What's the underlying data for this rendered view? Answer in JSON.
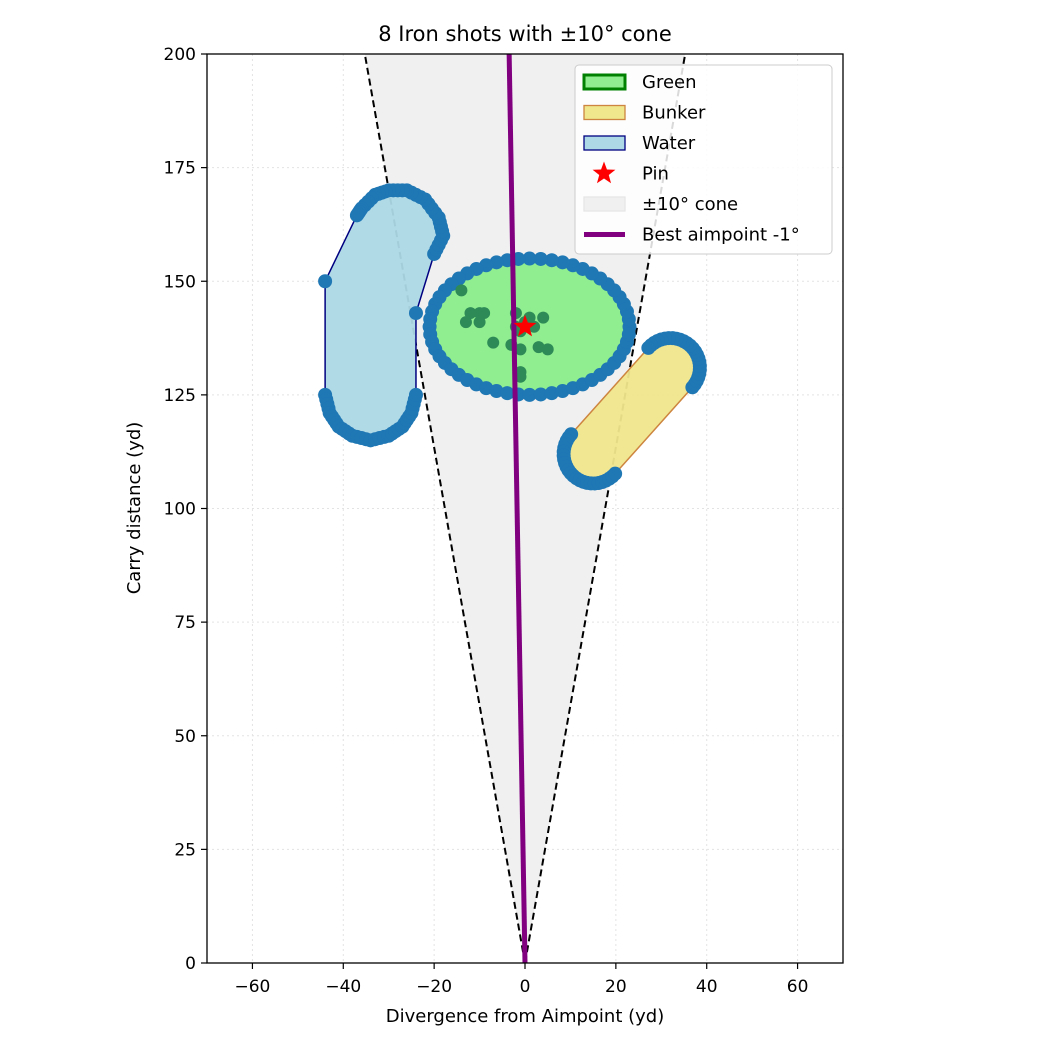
{
  "chart_data": {
    "type": "scatter",
    "title": "8 Iron shots with ±10° cone",
    "xlabel": "Divergence from Aimpoint (yd)",
    "ylabel": "Carry distance (yd)",
    "xlim": [
      -70,
      70
    ],
    "ylim": [
      0,
      200
    ],
    "xticks": [
      -60,
      -40,
      -20,
      0,
      20,
      40,
      60
    ],
    "yticks": [
      0,
      25,
      50,
      75,
      100,
      125,
      150,
      175,
      200
    ],
    "xtick_labels": [
      "−60",
      "−40",
      "−20",
      "0",
      "20",
      "40",
      "60"
    ],
    "ytick_labels": [
      "0",
      "25",
      "50",
      "75",
      "100",
      "125",
      "150",
      "175",
      "200"
    ],
    "grid": true,
    "legend_position": "top-right",
    "legend": [
      {
        "label": "Green",
        "kind": "patch",
        "fill": "#90ee90",
        "stroke": "#008000"
      },
      {
        "label": "Bunker",
        "kind": "patch",
        "fill": "#f0e68c",
        "stroke": "#cd853f"
      },
      {
        "label": "Water",
        "kind": "patch",
        "fill": "#add8e6",
        "stroke": "#000080"
      },
      {
        "label": "Pin",
        "kind": "star",
        "fill": "#ff0000"
      },
      {
        "label": "±10° cone",
        "kind": "patch",
        "fill": "#f0f0f0",
        "stroke": "#e6e6e6"
      },
      {
        "label": "Best aimpoint -1°",
        "kind": "line",
        "stroke": "#800080"
      }
    ],
    "cone": {
      "half_angle_deg": 10,
      "color": "#f0f0f0"
    },
    "best_aimpoint": {
      "angle_deg": -1,
      "color": "#800080"
    },
    "pin": {
      "x": 0,
      "y": 140,
      "color": "#ff0000"
    },
    "green": {
      "cx": 1,
      "cy": 140,
      "rx": 22,
      "ry": 15,
      "fill": "#90ee90",
      "stroke": "#008000"
    },
    "bunker": {
      "x1": 15,
      "y1": 112,
      "x2": 32,
      "y2": 131,
      "radius": 6.5,
      "fill": "#f0e68c",
      "stroke": "#cd853f"
    },
    "water": {
      "fill": "#add8e6",
      "stroke": "#000080",
      "polygon": [
        [
          -44,
          150
        ],
        [
          -44,
          125
        ],
        [
          -43,
          121
        ],
        [
          -41,
          118
        ],
        [
          -38,
          116
        ],
        [
          -34,
          115
        ],
        [
          -30,
          116
        ],
        [
          -27,
          118
        ],
        [
          -25,
          121
        ],
        [
          -24,
          125
        ],
        [
          -24,
          143
        ],
        [
          -20,
          156
        ],
        [
          -18,
          160
        ],
        [
          -19,
          164
        ],
        [
          -22,
          168
        ],
        [
          -26,
          170
        ],
        [
          -30,
          170
        ],
        [
          -33,
          169
        ],
        [
          -36,
          166
        ],
        [
          -37,
          164.5
        ]
      ]
    },
    "boundary_points_color": "#1f77b4",
    "shots_color": "#2e8b57",
    "shots": [
      {
        "x": -14,
        "y": 148
      },
      {
        "x": -12,
        "y": 143
      },
      {
        "x": -10,
        "y": 143
      },
      {
        "x": -9,
        "y": 143
      },
      {
        "x": -13,
        "y": 141
      },
      {
        "x": -10,
        "y": 141
      },
      {
        "x": -2,
        "y": 143
      },
      {
        "x": 1,
        "y": 142
      },
      {
        "x": 4,
        "y": 142
      },
      {
        "x": -2,
        "y": 140
      },
      {
        "x": 2,
        "y": 140
      },
      {
        "x": -1,
        "y": 139
      },
      {
        "x": -7,
        "y": 136.5
      },
      {
        "x": -3,
        "y": 136
      },
      {
        "x": 3,
        "y": 135.5
      },
      {
        "x": 5,
        "y": 135
      },
      {
        "x": -1,
        "y": 135
      },
      {
        "x": -1,
        "y": 130
      },
      {
        "x": -1,
        "y": 129
      },
      {
        "x": 0,
        "y": 141
      }
    ]
  }
}
